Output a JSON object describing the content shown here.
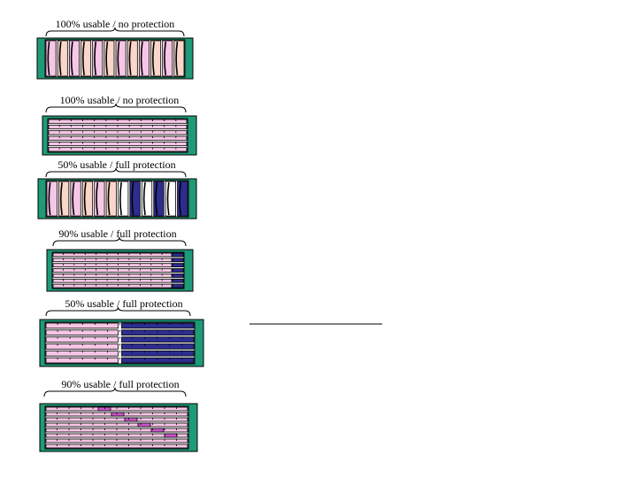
{
  "colors": {
    "pink": "#f7c6e6",
    "peach": "#f9d6c9",
    "navy": "#2d2d8f",
    "magenta": "#cc55cc",
    "teal": "#1f9a78",
    "line": "#000000"
  },
  "panels": [
    {
      "caption": "100% usable / no protection",
      "layout": "vertical",
      "protection": "none"
    },
    {
      "caption": "100% usable / no protection",
      "layout": "horizontal",
      "protection": "none"
    },
    {
      "caption": "50% usable / full protection",
      "layout": "vertical",
      "protection": "mirror"
    },
    {
      "caption": "90% usable / full protection",
      "layout": "horizontal",
      "protection": "parity-column"
    },
    {
      "caption": "50% usable / full protection",
      "layout": "horizontal-split",
      "protection": "mirror"
    },
    {
      "caption": "90% usable / full protection",
      "layout": "horizontal",
      "protection": "distributed-parity"
    }
  ]
}
